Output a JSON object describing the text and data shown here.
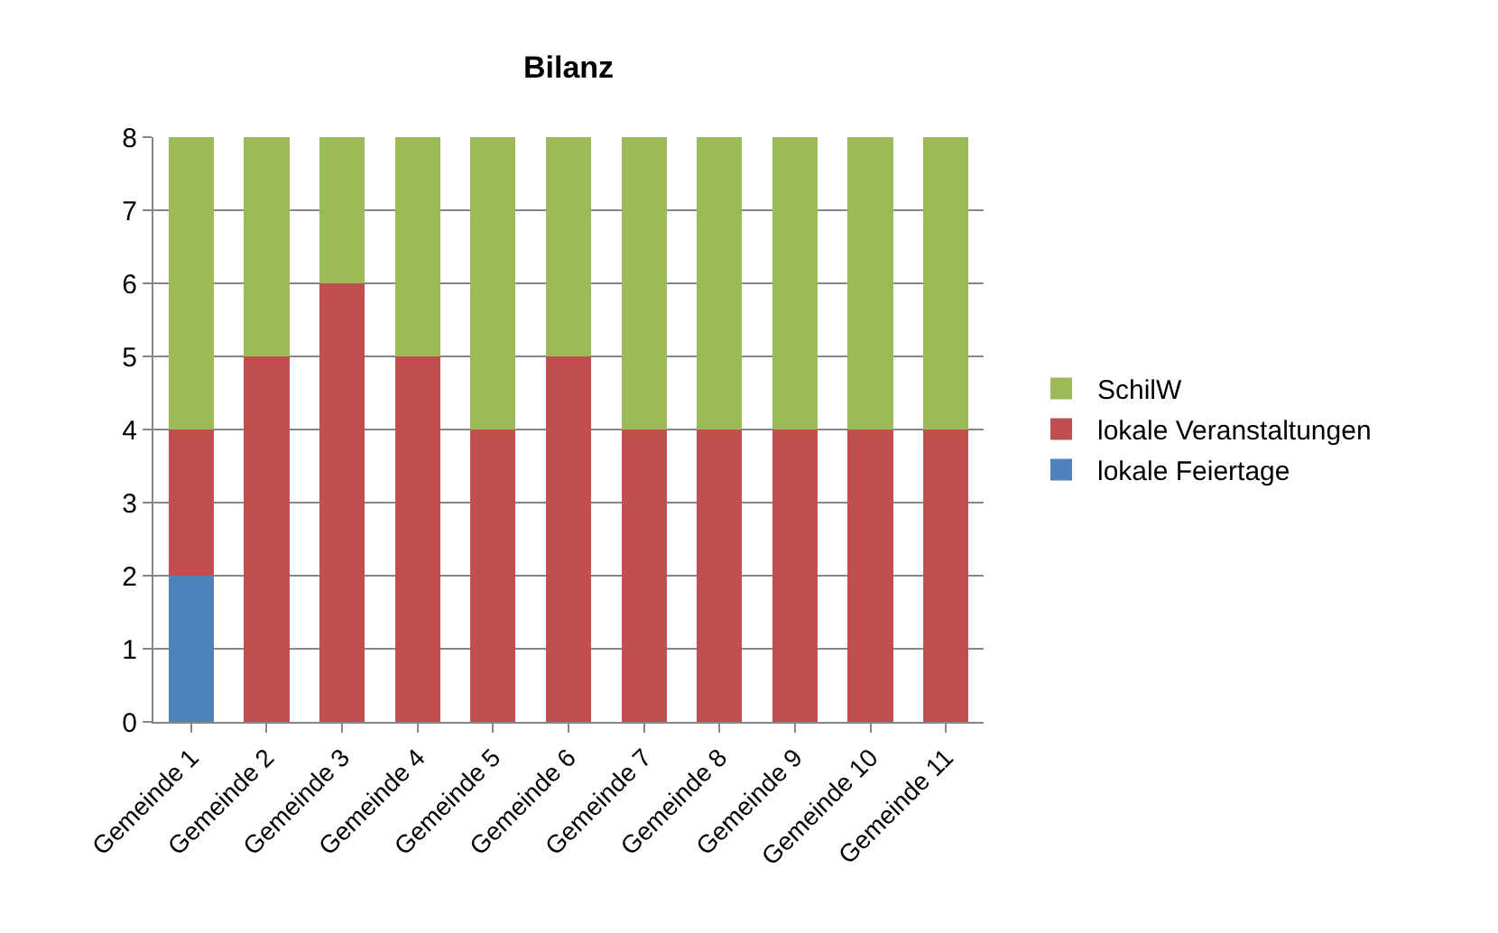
{
  "chart_data": {
    "type": "bar",
    "title": "Bilanz",
    "stacked": true,
    "categories": [
      "Gemeinde 1",
      "Gemeinde 2",
      "Gemeinde 3",
      "Gemeinde 4",
      "Gemeinde 5",
      "Gemeinde 6",
      "Gemeinde 7",
      "Gemeinde 8",
      "Gemeinde 9",
      "Gemeinde 10",
      "Gemeinde 11"
    ],
    "series": [
      {
        "name": "lokale Feiertage",
        "color": "#4f81bd",
        "values": [
          2,
          0,
          0,
          0,
          0,
          0,
          0,
          0,
          0,
          0,
          0
        ]
      },
      {
        "name": "lokale Veranstaltungen",
        "color": "#c0504d",
        "values": [
          2,
          5,
          6,
          5,
          4,
          5,
          4,
          4,
          4,
          4,
          4
        ]
      },
      {
        "name": "SchilW",
        "color": "#9bbb59",
        "values": [
          4,
          3,
          2,
          3,
          4,
          3,
          4,
          4,
          4,
          4,
          4
        ]
      }
    ],
    "ylim": [
      0,
      8
    ],
    "yticks": [
      0,
      1,
      2,
      3,
      4,
      5,
      6,
      7,
      8
    ],
    "grid": "y",
    "legend": "right"
  }
}
